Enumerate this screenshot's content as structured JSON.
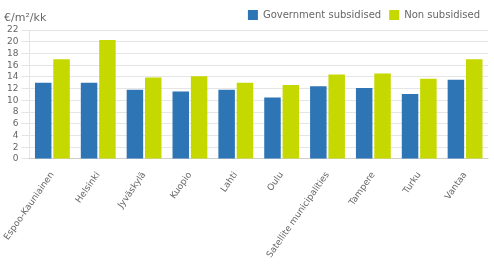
{
  "chart_data": {
    "type": "bar",
    "ylabel": "€/m²/kk",
    "categories": [
      "Espoo-Kauniainen",
      "Helsinki",
      "Jyväskylä",
      "Kuopio",
      "Lahti",
      "Oulu",
      "Satellite municipalities",
      "Tampere",
      "Turku",
      "Vantaa"
    ],
    "series": [
      {
        "name": "Government subsidised",
        "color": "#2e75b6",
        "values": [
          13.0,
          13.0,
          11.8,
          11.5,
          11.8,
          10.5,
          12.4,
          12.1,
          11.1,
          13.5
        ]
      },
      {
        "name": "Non subsidised",
        "color": "#c5d900",
        "values": [
          17.0,
          20.3,
          13.9,
          14.1,
          13.0,
          12.6,
          14.4,
          14.6,
          13.7,
          17.0
        ]
      }
    ],
    "ylim": [
      0,
      22
    ],
    "yticks": [
      0,
      2,
      4,
      6,
      8,
      10,
      12,
      14,
      16,
      18,
      20,
      22
    ],
    "grid": true,
    "legend": "upper right"
  }
}
